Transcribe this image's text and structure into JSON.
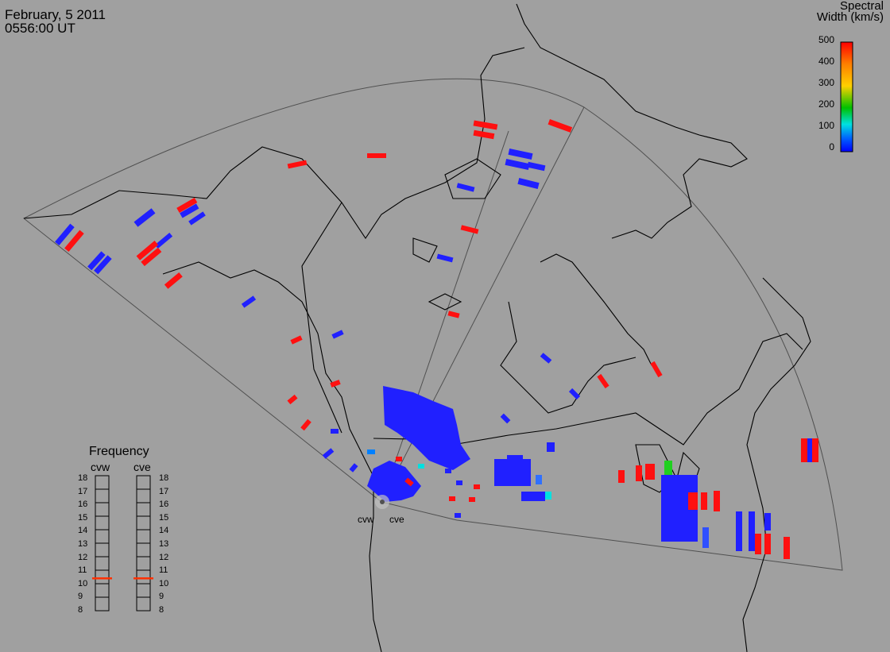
{
  "header": {
    "date": "February, 5 2011",
    "time": "0556:00 UT"
  },
  "colorbar": {
    "title_line1": "Spectral",
    "title_line2": "Width (km/s)",
    "ticks": [
      "500",
      "400",
      "300",
      "200",
      "100",
      "0"
    ],
    "colors": [
      "#ff0000",
      "#ff7f00",
      "#ffd000",
      "#00c000",
      "#00e0e0",
      "#0060ff",
      "#0000ff"
    ]
  },
  "frequency_panel": {
    "title": "Frequency",
    "left_radar": "cvw",
    "right_radar": "cve",
    "scale": [
      "18",
      "17",
      "16",
      "15",
      "14",
      "13",
      "12",
      "11",
      "10",
      "9",
      "8"
    ],
    "cvw_value": 10.9,
    "cve_value": 10.9
  },
  "radars": [
    {
      "name": "cvw"
    },
    {
      "name": "cve"
    }
  ],
  "colors": {
    "background": "#a0a0a0",
    "coastline": "#000000",
    "fov_outline": "#404040",
    "high_width": "#ff1010",
    "low_width": "#2020ff",
    "frequency_marker": "#ff3000"
  }
}
